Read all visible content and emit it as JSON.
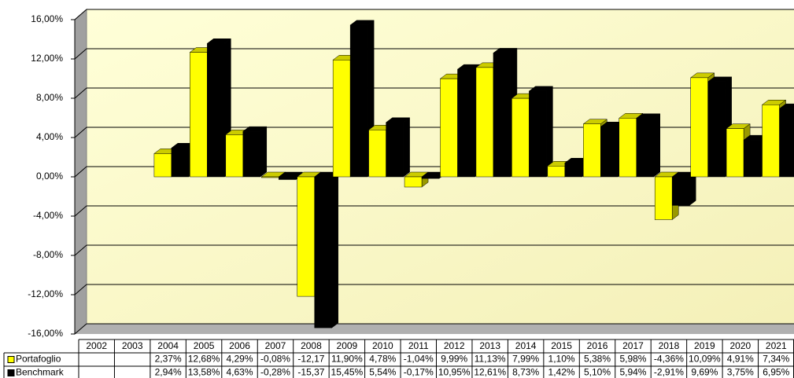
{
  "chart_data": {
    "type": "bar",
    "categories": [
      "2002",
      "2003",
      "2004",
      "2005",
      "2006",
      "2007",
      "2008",
      "2009",
      "2010",
      "2011",
      "2012",
      "2013",
      "2014",
      "2015",
      "2016",
      "2017",
      "2018",
      "2019",
      "2020",
      "2021"
    ],
    "series": [
      {
        "name": "Portafoglio",
        "color": "#ffff00",
        "values": [
          null,
          null,
          2.37,
          12.68,
          4.29,
          -0.08,
          -12.17,
          11.9,
          4.78,
          -1.04,
          9.99,
          11.13,
          7.99,
          1.1,
          5.38,
          5.98,
          -4.36,
          10.09,
          4.91,
          7.34
        ],
        "value_labels": [
          null,
          null,
          "2,37%",
          "12,68%",
          "4,29%",
          "-0,08%",
          "-12,17",
          "11,90%",
          "4,78%",
          "-1,04%",
          "9,99%",
          "11,13%",
          "7,99%",
          "1,10%",
          "5,38%",
          "5,98%",
          "-4,36%",
          "10,09%",
          "4,91%",
          "7,34%"
        ]
      },
      {
        "name": "Benchmark",
        "color": "#000000",
        "values": [
          null,
          null,
          2.94,
          13.58,
          4.63,
          -0.28,
          -15.37,
          15.45,
          5.54,
          -0.17,
          10.95,
          12.61,
          8.73,
          1.42,
          5.1,
          5.94,
          -2.91,
          9.69,
          3.75,
          6.95
        ],
        "value_labels": [
          null,
          null,
          "2,94%",
          "13,58%",
          "4,63%",
          "-0,28%",
          "-15,37",
          "15,45%",
          "5,54%",
          "-0,17%",
          "10,95%",
          "12,61%",
          "8,73%",
          "1,42%",
          "5,10%",
          "5,94%",
          "-2,91%",
          "9,69%",
          "3,75%",
          "6,95%"
        ]
      }
    ],
    "ylim": [
      -16,
      16
    ],
    "yticks": [
      {
        "value": -16,
        "label": "-16,00%"
      },
      {
        "value": -12,
        "label": "-12,00%"
      },
      {
        "value": -8,
        "label": "-8,00%"
      },
      {
        "value": -4,
        "label": "-4,00%"
      },
      {
        "value": 0,
        "label": "0,00%"
      },
      {
        "value": 4,
        "label": "4,00%"
      },
      {
        "value": 8,
        "label": "8,00%"
      },
      {
        "value": 12,
        "label": "12,00%"
      },
      {
        "value": 16,
        "label": "16,00%"
      }
    ],
    "grid": true
  }
}
